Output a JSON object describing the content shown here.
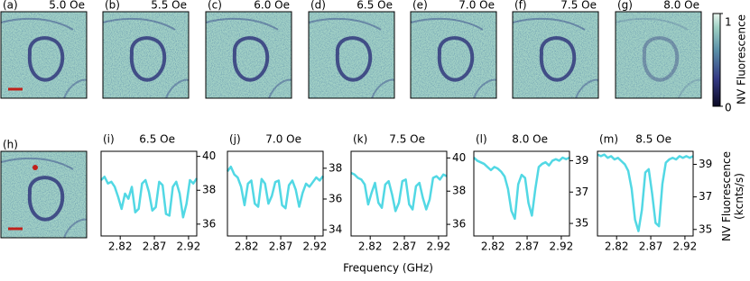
{
  "image_panels": [
    {
      "label": "(a)",
      "field": "5.0 Oe"
    },
    {
      "label": "(b)",
      "field": "5.5 Oe"
    },
    {
      "label": "(c)",
      "field": "6.0 Oe"
    },
    {
      "label": "(d)",
      "field": "6.5 Oe"
    },
    {
      "label": "(e)",
      "field": "7.0 Oe"
    },
    {
      "label": "(f)",
      "field": "7.5 Oe"
    },
    {
      "label": "(g)",
      "field": "8.0 Oe"
    },
    {
      "label": "(h)"
    }
  ],
  "colorbar": {
    "label": "NV Fluorescence",
    "lim": [
      0,
      1
    ],
    "ticks": [
      0,
      1
    ]
  },
  "xlabel": "Frequency (GHz)",
  "ylabel": "NV Fluorescence (kcnts/s)",
  "chart_data": [
    {
      "type": "line",
      "label": "(i)",
      "title": "6.5 Oe",
      "x": [
        2.792,
        2.797,
        2.802,
        2.807,
        2.812,
        2.817,
        2.822,
        2.827,
        2.832,
        2.837,
        2.842,
        2.847,
        2.852,
        2.857,
        2.862,
        2.867,
        2.872,
        2.877,
        2.882,
        2.887,
        2.892,
        2.897,
        2.902,
        2.907,
        2.912,
        2.917,
        2.922,
        2.927,
        2.932
      ],
      "series": [
        {
          "color": "#52d8e4",
          "values": [
            38.6,
            38.8,
            38.4,
            38.5,
            38.2,
            37.6,
            36.9,
            37.8,
            37.5,
            38.2,
            36.7,
            36.9,
            38.4,
            38.6,
            37.9,
            36.8,
            37.0,
            38.5,
            38.3,
            36.6,
            36.5,
            38.2,
            38.5,
            37.8,
            36.4,
            37.2,
            38.6,
            38.4,
            38.7
          ]
        }
      ],
      "xlim": [
        2.792,
        2.932
      ],
      "ylim": [
        35.3,
        40.3
      ],
      "xticks": [
        2.82,
        2.87,
        2.92
      ],
      "yticks": [
        36,
        38,
        40
      ]
    },
    {
      "type": "line",
      "label": "(j)",
      "title": "7.0 Oe",
      "x": [
        2.792,
        2.797,
        2.802,
        2.807,
        2.812,
        2.817,
        2.822,
        2.827,
        2.832,
        2.837,
        2.842,
        2.847,
        2.852,
        2.857,
        2.862,
        2.867,
        2.872,
        2.877,
        2.882,
        2.887,
        2.892,
        2.897,
        2.902,
        2.907,
        2.912,
        2.917,
        2.922,
        2.927,
        2.932
      ],
      "series": [
        {
          "color": "#52d8e4",
          "values": [
            37.8,
            38.1,
            37.6,
            37.4,
            36.8,
            35.6,
            37.0,
            37.2,
            35.7,
            35.5,
            37.3,
            37.0,
            35.7,
            36.2,
            37.1,
            37.2,
            35.6,
            35.4,
            36.9,
            37.2,
            36.6,
            35.5,
            36.4,
            37.0,
            36.8,
            37.1,
            37.4,
            37.2,
            37.5
          ]
        }
      ],
      "xlim": [
        2.792,
        2.932
      ],
      "ylim": [
        33.6,
        39.1
      ],
      "xticks": [
        2.82,
        2.87,
        2.92
      ],
      "yticks": [
        34,
        36,
        38
      ]
    },
    {
      "type": "line",
      "label": "(k)",
      "title": "7.5 Oe",
      "x": [
        2.792,
        2.797,
        2.802,
        2.807,
        2.812,
        2.817,
        2.822,
        2.827,
        2.832,
        2.837,
        2.842,
        2.847,
        2.852,
        2.857,
        2.862,
        2.867,
        2.872,
        2.877,
        2.882,
        2.887,
        2.892,
        2.897,
        2.902,
        2.907,
        2.912,
        2.917,
        2.922,
        2.927,
        2.932
      ],
      "series": [
        {
          "color": "#52d8e4",
          "values": [
            39.1,
            39.0,
            38.8,
            38.7,
            38.4,
            37.2,
            37.9,
            38.5,
            37.3,
            37.0,
            38.4,
            38.6,
            37.8,
            36.8,
            37.3,
            38.6,
            38.7,
            37.2,
            36.9,
            38.3,
            38.5,
            37.6,
            36.9,
            37.5,
            38.8,
            38.9,
            38.7,
            39.0,
            38.9
          ]
        }
      ],
      "xlim": [
        2.792,
        2.932
      ],
      "ylim": [
        35.3,
        40.4
      ],
      "xticks": [
        2.82,
        2.87,
        2.92
      ],
      "yticks": [
        36,
        38,
        40
      ]
    },
    {
      "type": "line",
      "label": "(l)",
      "title": "8.0 Oe",
      "x": [
        2.792,
        2.797,
        2.802,
        2.807,
        2.812,
        2.817,
        2.822,
        2.827,
        2.832,
        2.837,
        2.842,
        2.847,
        2.852,
        2.857,
        2.862,
        2.867,
        2.872,
        2.877,
        2.882,
        2.887,
        2.892,
        2.897,
        2.902,
        2.907,
        2.912,
        2.917,
        2.922,
        2.927,
        2.932
      ],
      "series": [
        {
          "color": "#52d8e4",
          "values": [
            39.2,
            39.0,
            38.9,
            38.8,
            38.6,
            38.4,
            38.6,
            38.5,
            38.3,
            38.0,
            37.2,
            35.8,
            35.3,
            37.5,
            38.1,
            37.9,
            36.3,
            35.5,
            37.2,
            38.6,
            38.8,
            38.9,
            38.7,
            39.0,
            39.1,
            39.0,
            39.2,
            39.1,
            39.2
          ]
        }
      ],
      "xlim": [
        2.792,
        2.932
      ],
      "ylim": [
        34.2,
        39.6
      ],
      "xticks": [
        2.82,
        2.87,
        2.92
      ],
      "yticks": [
        35,
        37,
        39
      ]
    },
    {
      "type": "line",
      "label": "(m)",
      "title": "8.5 Oe",
      "x": [
        2.792,
        2.797,
        2.802,
        2.807,
        2.812,
        2.817,
        2.822,
        2.827,
        2.832,
        2.837,
        2.842,
        2.847,
        2.852,
        2.857,
        2.862,
        2.867,
        2.872,
        2.877,
        2.882,
        2.887,
        2.892,
        2.897,
        2.902,
        2.907,
        2.912,
        2.917,
        2.922,
        2.927,
        2.932
      ],
      "series": [
        {
          "color": "#52d8e4",
          "values": [
            39.6,
            39.5,
            39.6,
            39.4,
            39.5,
            39.3,
            39.4,
            39.2,
            39.0,
            38.6,
            37.5,
            35.6,
            34.9,
            36.2,
            38.5,
            38.7,
            37.2,
            35.4,
            35.2,
            37.8,
            39.1,
            39.3,
            39.4,
            39.3,
            39.5,
            39.4,
            39.5,
            39.4,
            39.5
          ]
        }
      ],
      "xlim": [
        2.792,
        2.932
      ],
      "ylim": [
        34.6,
        39.8
      ],
      "xticks": [
        2.82,
        2.87,
        2.92
      ],
      "yticks": [
        35,
        37,
        39
      ]
    }
  ]
}
